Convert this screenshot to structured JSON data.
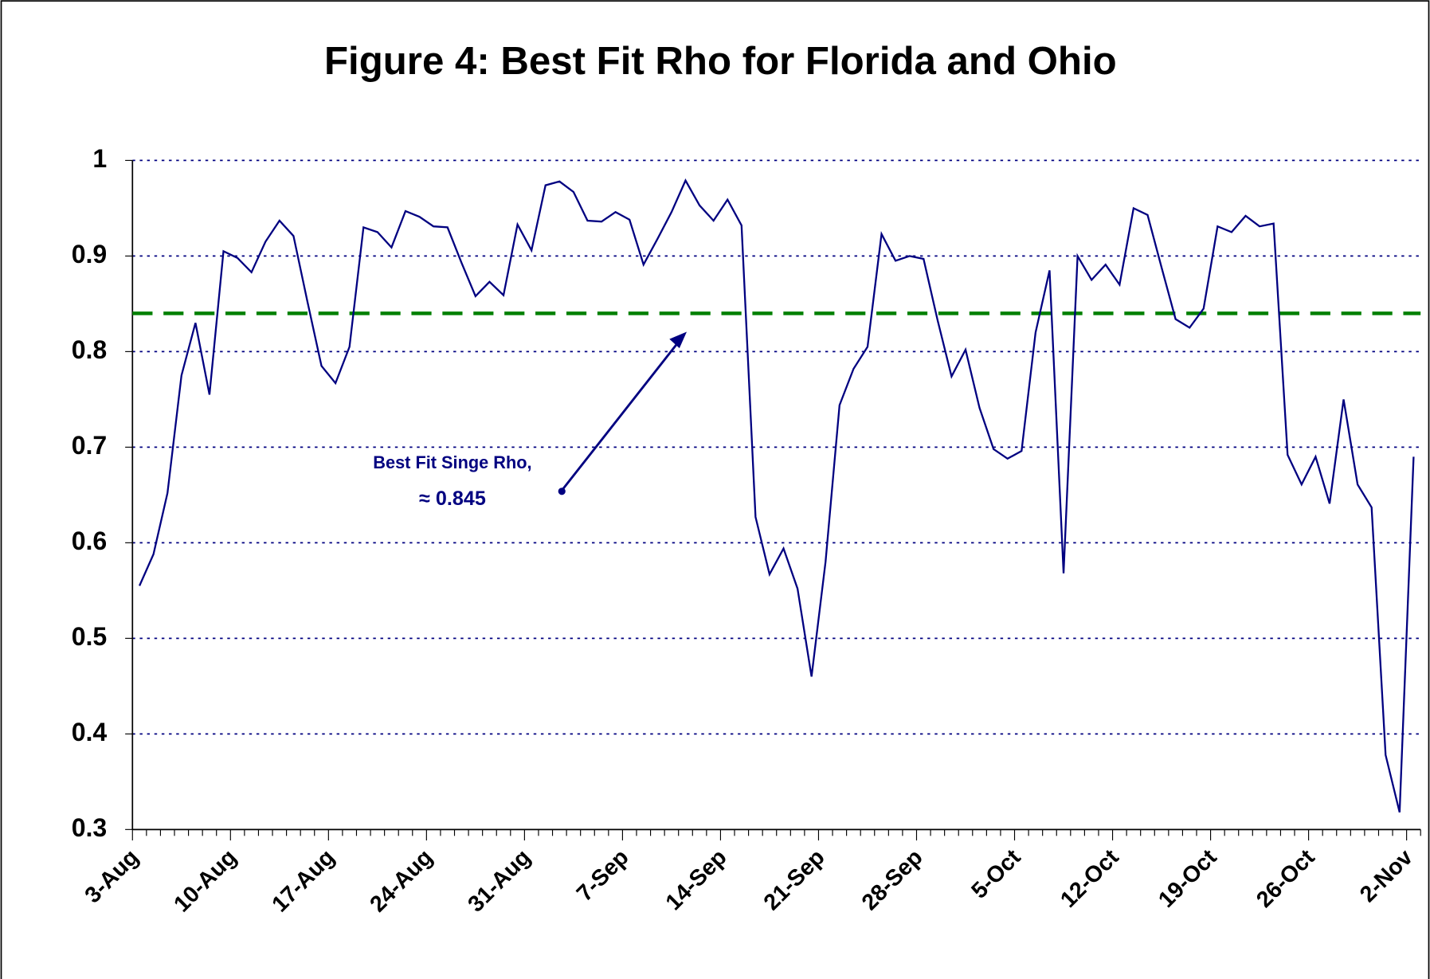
{
  "chart_data": {
    "type": "line",
    "title": "Figure 4: Best Fit Rho for Florida and Ohio",
    "categories": [
      "3-Aug",
      null,
      null,
      null,
      null,
      null,
      null,
      "10-Aug",
      null,
      null,
      null,
      null,
      null,
      null,
      "17-Aug",
      null,
      null,
      null,
      null,
      null,
      null,
      "24-Aug",
      null,
      null,
      null,
      null,
      null,
      null,
      "31-Aug",
      null,
      null,
      null,
      null,
      null,
      null,
      "7-Sep",
      null,
      null,
      null,
      null,
      null,
      null,
      "14-Sep",
      null,
      null,
      null,
      null,
      null,
      null,
      "21-Sep",
      null,
      null,
      null,
      null,
      null,
      null,
      "28-Sep",
      null,
      null,
      null,
      null,
      null,
      null,
      "5-Oct",
      null,
      null,
      null,
      null,
      null,
      null,
      "12-Oct",
      null,
      null,
      null,
      null,
      null,
      null,
      "19-Oct",
      null,
      null,
      null,
      null,
      null,
      null,
      "26-Oct",
      null,
      null,
      null,
      null,
      null,
      null,
      "2-Nov"
    ],
    "values": [
      0.555,
      0.588,
      0.652,
      0.775,
      0.83,
      0.755,
      0.905,
      0.898,
      0.883,
      0.915,
      0.937,
      0.921,
      0.852,
      0.785,
      0.767,
      0.805,
      0.93,
      0.925,
      0.909,
      0.947,
      0.941,
      0.931,
      0.93,
      0.893,
      0.858,
      0.873,
      0.859,
      0.933,
      0.906,
      0.974,
      0.978,
      0.967,
      0.937,
      0.936,
      0.946,
      0.938,
      0.891,
      0.918,
      0.946,
      0.979,
      0.953,
      0.937,
      0.959,
      0.932,
      0.627,
      0.567,
      0.594,
      0.552,
      0.46,
      0.58,
      0.744,
      0.782,
      0.805,
      0.923,
      0.895,
      0.9,
      0.897,
      0.833,
      0.774,
      0.802,
      0.741,
      0.698,
      0.688,
      0.696,
      0.82,
      0.885,
      0.568,
      0.9,
      0.875,
      0.891,
      0.87,
      0.95,
      0.943,
      0.888,
      0.834,
      0.825,
      0.845,
      0.931,
      0.925,
      0.942,
      0.931,
      0.934,
      0.692,
      0.661,
      0.69,
      0.641,
      0.75,
      0.661,
      0.637,
      0.378,
      0.318,
      0.69
    ],
    "color": "#000080",
    "ylim": [
      0.3,
      1
    ],
    "yticks": [
      0.3,
      0.4,
      0.5,
      0.6,
      0.7,
      0.8,
      0.9,
      1
    ],
    "grid": true,
    "reference_line": {
      "value": 0.84,
      "color": "#008000"
    },
    "annotation": [
      "Best Fit Singe Rho,",
      "≈ 0.845"
    ]
  }
}
